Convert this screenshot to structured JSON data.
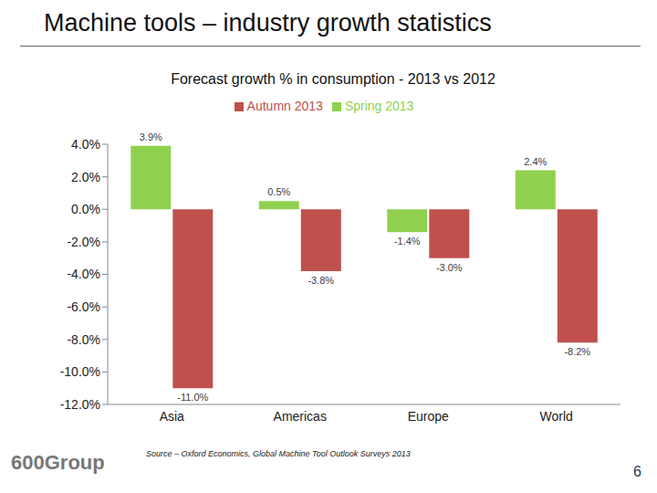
{
  "chart_data": {
    "type": "bar",
    "title": "Machine tools – industry growth statistics",
    "subtitle": "Forecast growth % in consumption - 2013 vs 2012",
    "categories": [
      "Asia",
      "Americas",
      "Europe",
      "World"
    ],
    "series": [
      {
        "name": "Spring 2013",
        "color": "#8fd14f",
        "values": [
          3.9,
          0.5,
          -1.4,
          2.4
        ],
        "value_labels": [
          "3.9%",
          "0.5%",
          "-1.4%",
          "2.4%"
        ]
      },
      {
        "name": "Autumn 2013",
        "color": "#c0504d",
        "values": [
          -11.0,
          -3.8,
          -3.0,
          -8.2
        ],
        "value_labels": [
          "-11.0%",
          "-3.8%",
          "-3.0%",
          "-8.2%"
        ]
      }
    ],
    "ylim": [
      -12,
      4
    ],
    "yticks": [
      {
        "value": 4,
        "label": "4.0%"
      },
      {
        "value": 2,
        "label": "2.0%"
      },
      {
        "value": 0,
        "label": "0.0%"
      },
      {
        "value": -2,
        "label": "-2.0%"
      },
      {
        "value": -4,
        "label": "-4.0%"
      },
      {
        "value": -6,
        "label": "-6.0%"
      },
      {
        "value": -8,
        "label": "-8.0%"
      },
      {
        "value": -10,
        "label": "-10.0%"
      },
      {
        "value": -12,
        "label": "-12.0%"
      }
    ],
    "grid": false,
    "legend": "top",
    "data_labels": true,
    "annotations": [
      "Source – Oxford Economics, Global Machine Tool Outlook Surveys 2013",
      "600Group",
      "6"
    ]
  }
}
